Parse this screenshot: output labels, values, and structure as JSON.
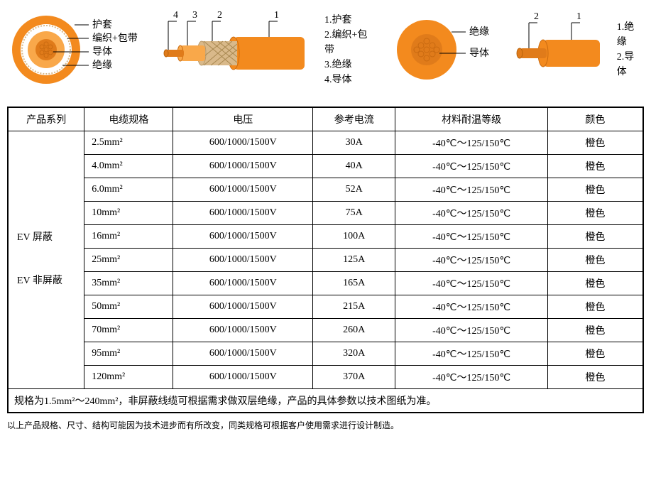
{
  "colors": {
    "orange": "#f38a1e",
    "orange_light": "#f9a84a",
    "conductor": "#e07b1a",
    "braid": "#d9b98a",
    "white": "#ffffff",
    "black": "#000000"
  },
  "diagram_left": {
    "cross_labels": [
      "护套",
      "编织+包带",
      "导体",
      "绝缘"
    ],
    "side_numbers": [
      "4",
      "3",
      "2",
      "1"
    ],
    "legend": [
      "1.护套",
      "2.编织+包带",
      "3.绝缘",
      "4.导体"
    ]
  },
  "diagram_right": {
    "cross_labels": [
      "绝缘",
      "导体"
    ],
    "side_numbers": [
      "2",
      "1"
    ],
    "legend": [
      "1.绝缘",
      "2.导体"
    ]
  },
  "table": {
    "headers": [
      "产品系列",
      "电缆规格",
      "电压",
      "参考电流",
      "材料耐温等级",
      "颜色"
    ],
    "series": [
      "EV 屏蔽",
      "EV 非屏蔽"
    ],
    "col_widths": [
      "12%",
      "14%",
      "22%",
      "13%",
      "24%",
      "15%"
    ],
    "rows": [
      {
        "spec": "2.5mm²",
        "voltage": "600/1000/1500V",
        "current": "30A",
        "temp": "-40℃～125/150℃",
        "color": "橙色"
      },
      {
        "spec": "4.0mm²",
        "voltage": "600/1000/1500V",
        "current": "40A",
        "temp": "-40℃～125/150℃",
        "color": "橙色"
      },
      {
        "spec": "6.0mm²",
        "voltage": "600/1000/1500V",
        "current": "52A",
        "temp": "-40℃～125/150℃",
        "color": "橙色"
      },
      {
        "spec": "10mm²",
        "voltage": "600/1000/1500V",
        "current": "75A",
        "temp": "-40℃～125/150℃",
        "color": "橙色"
      },
      {
        "spec": "16mm²",
        "voltage": "600/1000/1500V",
        "current": "100A",
        "temp": "-40℃～125/150℃",
        "color": "橙色"
      },
      {
        "spec": "25mm²",
        "voltage": "600/1000/1500V",
        "current": "125A",
        "temp": "-40℃～125/150℃",
        "color": "橙色"
      },
      {
        "spec": "35mm²",
        "voltage": "600/1000/1500V",
        "current": "165A",
        "temp": "-40℃～125/150℃",
        "color": "橙色"
      },
      {
        "spec": "50mm²",
        "voltage": "600/1000/1500V",
        "current": "215A",
        "temp": "-40℃～125/150℃",
        "color": "橙色"
      },
      {
        "spec": "70mm²",
        "voltage": "600/1000/1500V",
        "current": "260A",
        "temp": "-40℃～125/150℃",
        "color": "橙色"
      },
      {
        "spec": "95mm²",
        "voltage": "600/1000/1500V",
        "current": "320A",
        "temp": "-40℃～125/150℃",
        "color": "橙色"
      },
      {
        "spec": "120mm²",
        "voltage": "600/1000/1500V",
        "current": "370A",
        "temp": "-40℃～125/150℃",
        "color": "橙色"
      }
    ],
    "footer": "规格为1.5mm²～240mm²，非屏蔽线缆可根据需求做双层绝缘，产品的具体参数以技术图纸为准。"
  },
  "note": "以上产品规格、尺寸、结构可能因为技术进步而有所改变，同类规格可根据客户使用需求进行设计制造。"
}
